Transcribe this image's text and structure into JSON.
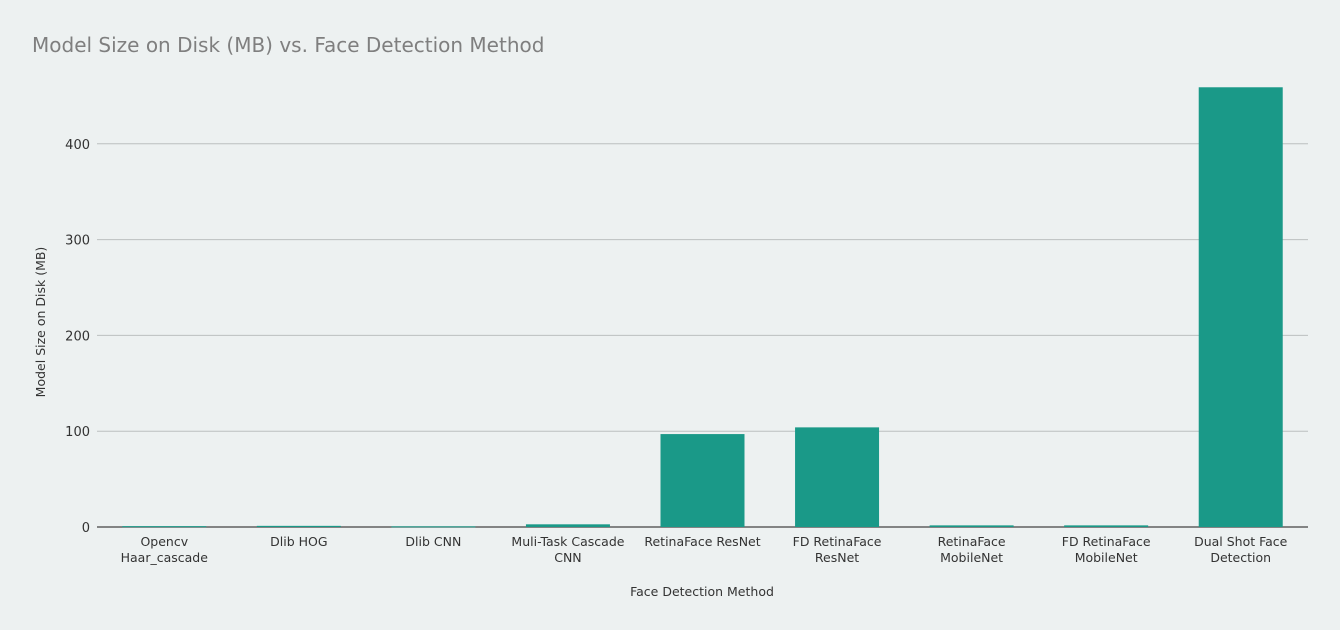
{
  "chart_data": {
    "type": "bar",
    "title": "Model Size on Disk (MB) vs. Face Detection Method",
    "xlabel": "Face Detection Method",
    "ylabel": "Model Size on Disk (MB)",
    "ylim": [
      0,
      460
    ],
    "yticks": [
      0,
      100,
      200,
      300,
      400
    ],
    "grid": true,
    "bar_color": "#1a9988",
    "categories": [
      [
        "Opencv",
        "Haar_cascade"
      ],
      [
        "Dlib HOG"
      ],
      [
        "Dlib CNN"
      ],
      [
        "Muli-Task Cascade",
        "CNN"
      ],
      [
        "RetinaFace ResNet"
      ],
      [
        "FD RetinaFace",
        "ResNet"
      ],
      [
        "RetinaFace",
        "MobileNet"
      ],
      [
        "FD RetinaFace",
        "MobileNet"
      ],
      [
        "Dual Shot Face",
        "Detection"
      ]
    ],
    "values": [
      0.9,
      1.2,
      0.7,
      2.8,
      97,
      104,
      1.7,
      1.7,
      459
    ]
  }
}
